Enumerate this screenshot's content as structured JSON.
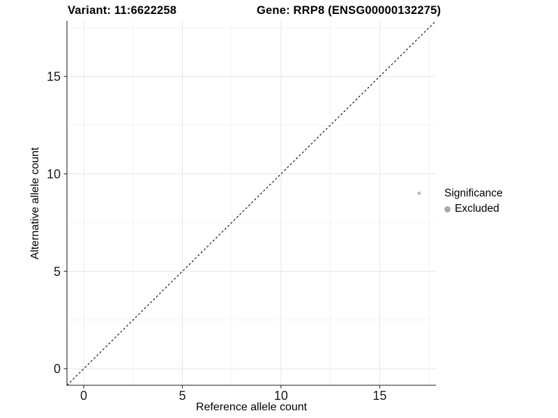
{
  "chart_data": {
    "type": "scatter",
    "title_left": "Variant: 11:6622258",
    "title_right": "Gene: RRP8 (ENSG00000132275)",
    "xlabel": "Reference allele count",
    "ylabel": "Alternative allele count",
    "xlim": [
      -0.85,
      17.85
    ],
    "ylim": [
      -0.85,
      17.85
    ],
    "x_ticks": [
      0,
      5,
      10,
      15
    ],
    "y_ticks": [
      0,
      5,
      10,
      15
    ],
    "x_minor_gridlines": [
      2.5,
      7.5,
      12.5,
      17.5
    ],
    "y_minor_gridlines": [
      2.5,
      7.5,
      12.5,
      17.5
    ],
    "grid": "major+minor",
    "legend_position": "right",
    "legend": {
      "title": "Significance",
      "items": [
        {
          "label": "Excluded",
          "color": "#a9a9a9"
        }
      ]
    },
    "reference_line": {
      "type": "identity y=x",
      "style": "dashed",
      "color": "#000000"
    },
    "series": [
      {
        "name": "Excluded",
        "color": "#bdbdbd",
        "points": [
          {
            "x": 17,
            "y": 9
          }
        ]
      }
    ],
    "colors": {
      "grid_major": "#e6e6e6",
      "grid_minor": "#f3f3f3",
      "axis_line": "#4a4a4a",
      "tick_mark": "#333333",
      "tick_label": "#1a1a1a"
    }
  }
}
